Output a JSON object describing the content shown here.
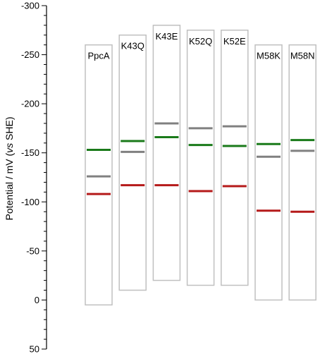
{
  "chart_data": {
    "type": "bar",
    "ylabel_prefix": "Potential / mV (",
    "ylabel_italic": "vs",
    "ylabel_suffix": " SHE)",
    "ylim": [
      50,
      -300
    ],
    "y_ticks": [
      -300,
      -250,
      -200,
      -150,
      -100,
      -50,
      0,
      50
    ],
    "y_tick_labels": [
      "-300",
      "-250",
      "-200",
      "-150",
      "-100",
      "-50",
      "0",
      "50"
    ],
    "grid": false,
    "categories": [
      "PpcA",
      "K43Q",
      "K43E",
      "K52Q",
      "K52E",
      "M58K",
      "M58N"
    ],
    "box_ranges": [
      [
        -260,
        5
      ],
      [
        -270,
        -10
      ],
      [
        -280,
        -20
      ],
      [
        -275,
        -15
      ],
      [
        -275,
        -15
      ],
      [
        -260,
        0
      ],
      [
        -260,
        0
      ]
    ],
    "series": [
      {
        "color": "#1a7a1a",
        "values": [
          -153,
          -162,
          -166,
          -158,
          -157,
          -159,
          -163
        ]
      },
      {
        "color": "#808080",
        "values": [
          -126,
          -151,
          -180,
          -175,
          -177,
          -146,
          -152
        ]
      },
      {
        "color": "#b51a1a",
        "values": [
          -108,
          -117,
          -117,
          -111,
          -116,
          -91,
          -90
        ]
      }
    ]
  }
}
